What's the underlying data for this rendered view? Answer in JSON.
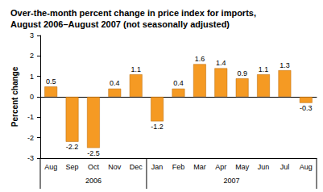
{
  "chart_data": {
    "type": "bar",
    "title": "Over-the-month percent change in price index for imports,\nAugust 2006–August 2007 (not seasonally adjusted)",
    "y_label": "Percent change",
    "categories": [
      "Aug",
      "Sep",
      "Oct",
      "Nov",
      "Dec",
      "Jan",
      "Feb",
      "Mar",
      "Apr",
      "May",
      "Jun",
      "Jul",
      "Aug"
    ],
    "values": [
      0.5,
      -2.2,
      -2.5,
      0.4,
      1.1,
      -1.2,
      0.4,
      1.6,
      1.4,
      0.9,
      1.1,
      1.3,
      -0.3
    ],
    "x_groups": [
      {
        "label": "2006",
        "count": 5
      },
      {
        "label": "2007",
        "count": 8
      }
    ],
    "color": "#f59a23",
    "ylim": [
      -3,
      3
    ],
    "yticks": [
      -3,
      -2,
      -1,
      0,
      1,
      2,
      3
    ],
    "grid": false,
    "data_labels": true
  }
}
